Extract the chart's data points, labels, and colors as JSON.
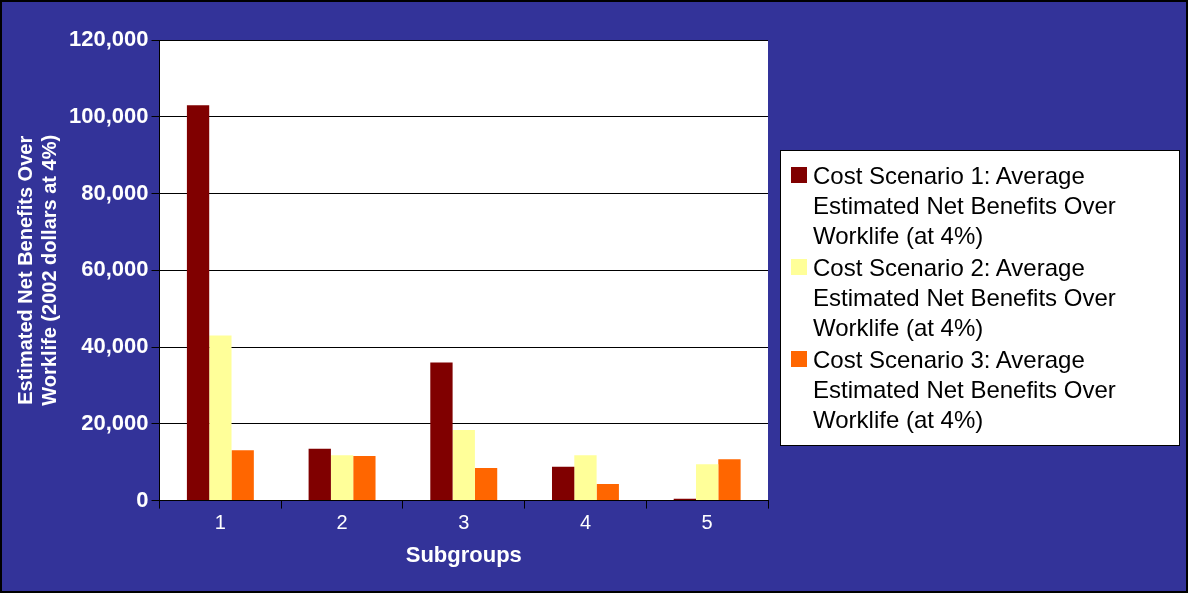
{
  "chart_data": {
    "type": "bar",
    "xlabel": "Subgroups",
    "ylabel": "Estimated Net Benefits Over Worklife (2002 dollars at 4%)",
    "categories": [
      "1",
      "2",
      "3",
      "4",
      "5"
    ],
    "series": [
      {
        "name": "Cost Scenario 1: Average Estimated Net Benefits Over Worklife (at 4%)",
        "color": "#800000",
        "values": [
          103000,
          13500,
          36000,
          8800,
          500
        ]
      },
      {
        "name": "Cost Scenario 2: Average Estimated Net Benefits Over Worklife (at 4%)",
        "color": "#ffff99",
        "values": [
          43000,
          11800,
          18400,
          11800,
          9500
        ]
      },
      {
        "name": "Cost Scenario 3: Average Estimated Net Benefits Over Worklife (at 4%)",
        "color": "#ff6600",
        "values": [
          13100,
          11600,
          8500,
          4300,
          10800
        ]
      }
    ],
    "ylim": [
      0,
      120000
    ],
    "yticks": [
      0,
      {
        "value": 20000,
        "label": "20,000"
      },
      {
        "value": 40000,
        "label": "40,000"
      },
      {
        "value": 60000,
        "label": "60,000"
      },
      {
        "value": 80000,
        "label": "80,000"
      },
      {
        "value": 100000,
        "label": "100,000"
      },
      {
        "value": 120000,
        "label": "120,000"
      }
    ],
    "grid": "y",
    "legend": "right"
  }
}
